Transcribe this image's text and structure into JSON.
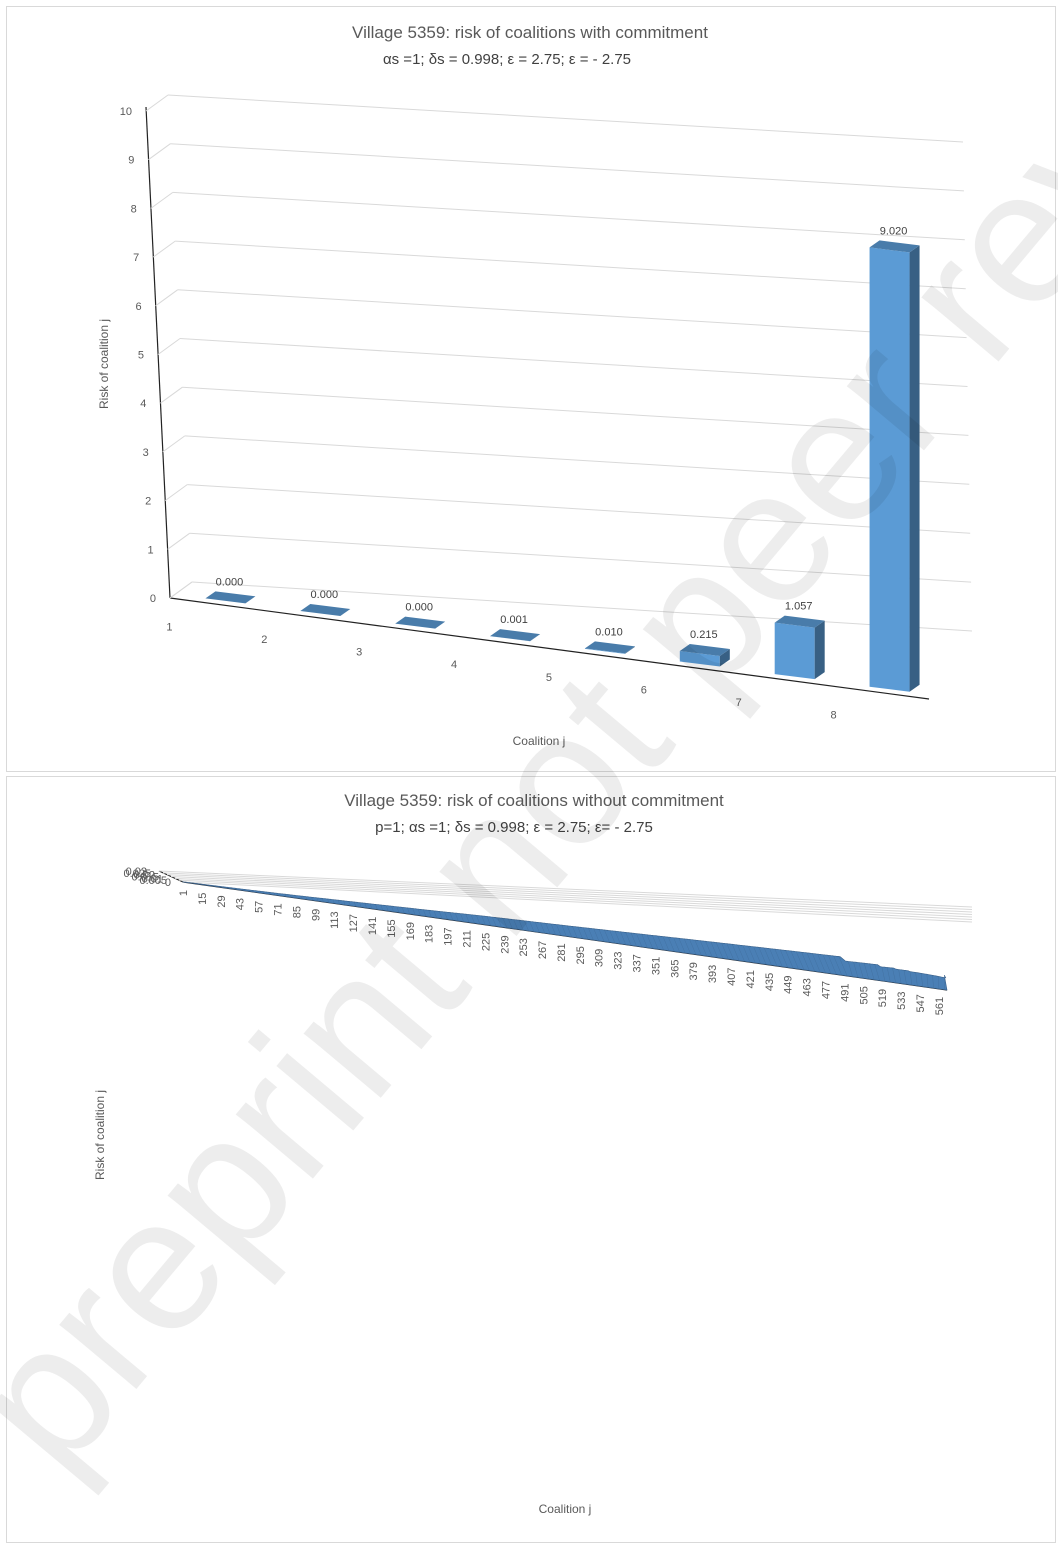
{
  "watermark": "preprint not peer reviewed",
  "chart_data": [
    {
      "type": "bar",
      "style": "3d-column",
      "title": "Village 5359: risk of coalitions with commitment",
      "subtitle": "αs =1;   δs = 0.998;   ε = 2.75;     ε = - 2.75",
      "xlabel": "Coalition j",
      "ylabel": "Risk of coalition j",
      "categories": [
        "1",
        "2",
        "3",
        "4",
        "5",
        "6",
        "7",
        "8"
      ],
      "values": [
        0.0,
        0.0,
        0.0,
        0.001,
        0.01,
        0.215,
        1.057,
        9.02
      ],
      "data_labels": [
        "0.000",
        "0.000",
        "0.000",
        "0.001",
        "0.010",
        "0.215",
        "1.057",
        "9.020"
      ],
      "ylim": [
        0,
        10
      ],
      "yticks": [
        "0",
        "1",
        "2",
        "3",
        "4",
        "5",
        "6",
        "7",
        "8",
        "9",
        "10"
      ],
      "grid": true,
      "color": "#5b9bd5"
    },
    {
      "type": "bar",
      "style": "3d-column",
      "title": "Village 5359: risk of coalitions without commitment",
      "subtitle": "p=1;  αs =1;   δs = 0.998;   ε = 2.75;    ε= - 2.75",
      "xlabel": "Coalition j",
      "ylabel": "Risk of coalition j",
      "n_categories": 567,
      "xticks": [
        "1",
        "15",
        "29",
        "43",
        "57",
        "71",
        "85",
        "99",
        "113",
        "127",
        "141",
        "155",
        "169",
        "183",
        "197",
        "211",
        "225",
        "239",
        "253",
        "267",
        "281",
        "295",
        "309",
        "323",
        "337",
        "351",
        "365",
        "379",
        "393",
        "407",
        "421",
        "435",
        "449",
        "463",
        "477",
        "491",
        "505",
        "519",
        "533",
        "547",
        "561"
      ],
      "profile_points": [
        [
          1,
          0.0005
        ],
        [
          15,
          0.0007
        ],
        [
          29,
          0.0009
        ],
        [
          43,
          0.0011
        ],
        [
          57,
          0.0014
        ],
        [
          71,
          0.0018
        ],
        [
          85,
          0.0023
        ],
        [
          99,
          0.0031
        ],
        [
          113,
          0.004
        ],
        [
          127,
          0.0047
        ],
        [
          141,
          0.0055
        ],
        [
          155,
          0.0063
        ],
        [
          169,
          0.0072
        ],
        [
          183,
          0.008
        ],
        [
          197,
          0.0091
        ],
        [
          211,
          0.0103
        ],
        [
          225,
          0.0113
        ],
        [
          239,
          0.012
        ],
        [
          253,
          0.0125
        ],
        [
          267,
          0.013
        ],
        [
          281,
          0.0136
        ],
        [
          295,
          0.0142
        ],
        [
          309,
          0.015
        ],
        [
          323,
          0.0158
        ],
        [
          337,
          0.0165
        ],
        [
          351,
          0.0173
        ],
        [
          365,
          0.0182
        ],
        [
          379,
          0.019
        ],
        [
          393,
          0.0198
        ],
        [
          407,
          0.0205
        ],
        [
          421,
          0.0212
        ],
        [
          435,
          0.0219
        ],
        [
          449,
          0.0225
        ],
        [
          463,
          0.0232
        ],
        [
          477,
          0.0237
        ],
        [
          491,
          0.0243
        ],
        [
          494,
          0.0247
        ],
        [
          495,
          0.0128
        ],
        [
          505,
          0.0135
        ],
        [
          519,
          0.0143
        ],
        [
          520,
          0.009
        ],
        [
          530,
          0.01
        ],
        [
          531,
          0.0075
        ],
        [
          540,
          0.0075
        ],
        [
          541,
          0.0055
        ],
        [
          547,
          0.0048
        ],
        [
          553,
          0.0038
        ],
        [
          559,
          0.0022
        ],
        [
          563,
          0.0008
        ],
        [
          565,
          0.0002
        ],
        [
          566,
          0.0
        ],
        [
          567,
          0.008
        ]
      ],
      "ylim": [
        0,
        0.03
      ],
      "yticks": [
        "0",
        "0.005",
        "0.01",
        "0.015",
        "0.02",
        "0.025",
        "0.03"
      ],
      "grid": true,
      "color": "#4a7fb5"
    }
  ]
}
